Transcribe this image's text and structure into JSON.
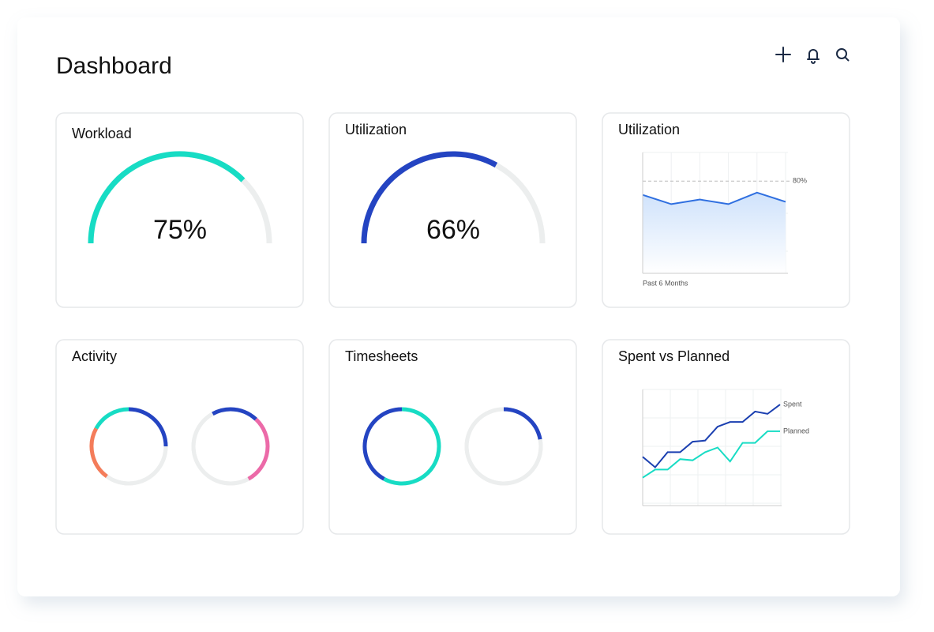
{
  "header": {
    "title": "Dashboard"
  },
  "cards": [
    {
      "title": "Workload",
      "type": "gauge",
      "value": 75,
      "value_label": "75%",
      "color": "#17dcc4",
      "track": "#eceeee"
    },
    {
      "title": "Utilization",
      "type": "gauge",
      "value": 66,
      "value_label": "66%",
      "color": "#2444c2",
      "track": "#eceeee"
    },
    {
      "title": "Utilization",
      "type": "area",
      "ylim": [
        0,
        100
      ],
      "reference": 80,
      "reference_label": "80%",
      "x_label": "Past 6 Months",
      "color": "#2f6fe0",
      "values": [
        68,
        60,
        64,
        60,
        70,
        62
      ]
    },
    {
      "title": "Activity",
      "type": "rings",
      "rings": [
        {
          "segments": [
            {
              "value": 25,
              "color": "#2444c2"
            },
            {
              "value": 35,
              "color": "#eceeee"
            },
            {
              "value": 23,
              "color": "#f47c5a"
            },
            {
              "value": 17,
              "color": "#17dcc4"
            }
          ]
        },
        {
          "segments": [
            {
              "value": 12,
              "color": "#2444c2"
            },
            {
              "value": 30,
              "color": "#ec6aa8"
            },
            {
              "value": 50,
              "color": "#eceeee"
            },
            {
              "value": 8,
              "color": "#2444c2"
            }
          ]
        }
      ]
    },
    {
      "title": "Timesheets",
      "type": "rings",
      "rings": [
        {
          "segments": [
            {
              "value": 58,
              "color": "#17dcc4"
            },
            {
              "value": 42,
              "color": "#2444c2"
            }
          ]
        },
        {
          "segments": [
            {
              "value": 22,
              "color": "#2444c2"
            },
            {
              "value": 78,
              "color": "#eceeee"
            }
          ]
        }
      ]
    },
    {
      "title": "Spent vs Planned",
      "type": "line",
      "ylim": [
        0,
        100
      ],
      "series": [
        {
          "name": "Spent",
          "color": "#1a3fb0",
          "values": [
            42,
            33,
            46,
            46,
            55,
            56,
            68,
            72,
            72,
            81,
            79,
            87
          ]
        },
        {
          "name": "Planned",
          "color": "#17dcc4",
          "values": [
            24,
            31,
            31,
            40,
            39,
            46,
            50,
            38,
            54,
            54,
            64,
            64
          ]
        }
      ]
    }
  ]
}
